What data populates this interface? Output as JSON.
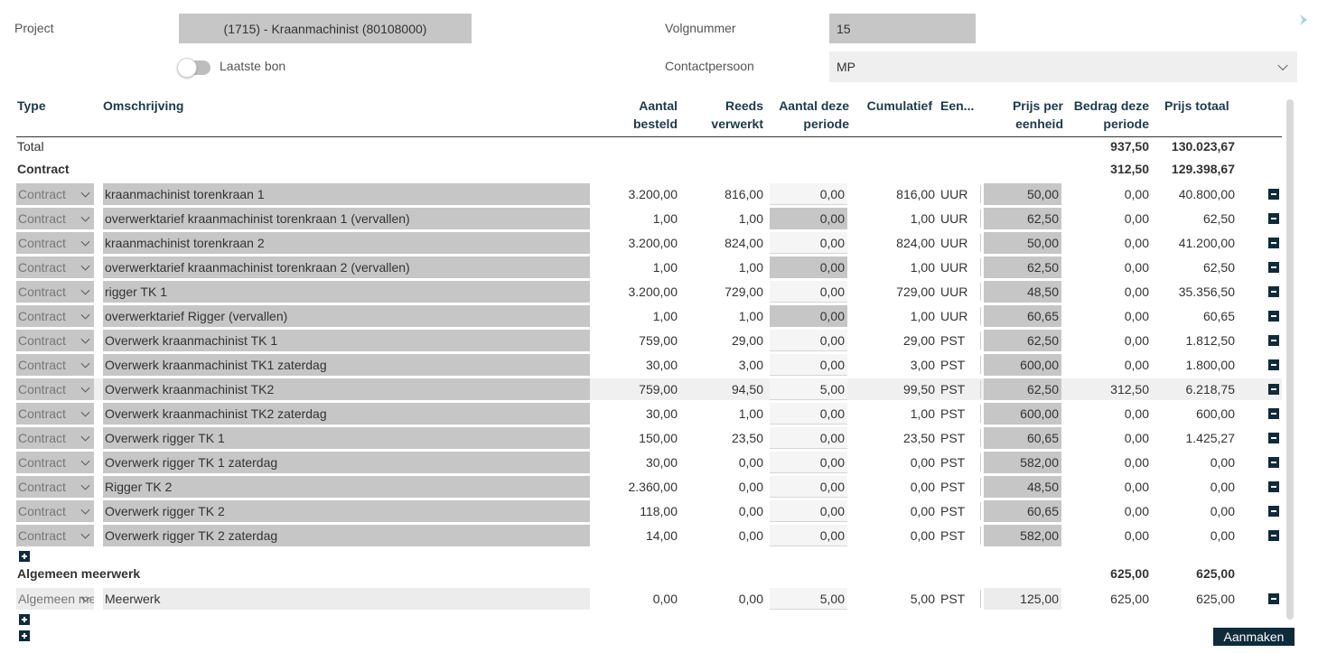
{
  "header": {
    "project_label": "Project",
    "project_value": "(1715) - Kraanmachinist (80108000)",
    "volgnummer_label": "Volgnummer",
    "volgnummer_value": "15",
    "laatste_bon_label": "Laatste bon",
    "laatste_bon_on": false,
    "contactpersoon_label": "Contactpersoon",
    "contactpersoon_value": "MP"
  },
  "columns": {
    "type": "Type",
    "omschrijving": "Omschrijving",
    "aantal_besteld_1": "Aantal",
    "aantal_besteld_2": "besteld",
    "reeds_verwerkt_1": "Reeds",
    "reeds_verwerkt_2": "verwerkt",
    "aantal_deze_periode_1": "Aantal deze",
    "aantal_deze_periode_2": "periode",
    "cumulatief": "Cumulatief",
    "eenheid": "Een...",
    "prijs_per_eenheid_1": "Prijs per",
    "prijs_per_eenheid_2": "eenheid",
    "bedrag_deze_periode_1": "Bedrag deze",
    "bedrag_deze_periode_2": "periode",
    "prijs_totaal": "Prijs totaal"
  },
  "total": {
    "label": "Total",
    "bedrag": "937,50",
    "totaal": "130.023,67"
  },
  "contract": {
    "label": "Contract",
    "bedrag": "312,50",
    "totaal": "129.398,67"
  },
  "contract_rows": [
    {
      "type": "Contract",
      "desc": "kraanmachinist torenkraan 1",
      "besteld": "3.200,00",
      "verwerkt": "816,00",
      "aantal": "0,00",
      "aantal_disabled": false,
      "cum": "816,00",
      "unit": "UUR",
      "prijs": "50,00",
      "bedrag": "0,00",
      "totaal": "40.800,00",
      "highlight": false
    },
    {
      "type": "Contract",
      "desc": "overwerktarief kraanmachinist torenkraan 1 (vervallen)",
      "besteld": "1,00",
      "verwerkt": "1,00",
      "aantal": "0,00",
      "aantal_disabled": true,
      "cum": "1,00",
      "unit": "UUR",
      "prijs": "62,50",
      "bedrag": "0,00",
      "totaal": "62,50",
      "highlight": false
    },
    {
      "type": "Contract",
      "desc": "kraanmachinist torenkraan 2",
      "besteld": "3.200,00",
      "verwerkt": "824,00",
      "aantal": "0,00",
      "aantal_disabled": false,
      "cum": "824,00",
      "unit": "UUR",
      "prijs": "50,00",
      "bedrag": "0,00",
      "totaal": "41.200,00",
      "highlight": false
    },
    {
      "type": "Contract",
      "desc": "overwerktarief kraanmachinist torenkraan 2 (vervallen)",
      "besteld": "1,00",
      "verwerkt": "1,00",
      "aantal": "0,00",
      "aantal_disabled": true,
      "cum": "1,00",
      "unit": "UUR",
      "prijs": "62,50",
      "bedrag": "0,00",
      "totaal": "62,50",
      "highlight": false
    },
    {
      "type": "Contract",
      "desc": "rigger TK 1",
      "besteld": "3.200,00",
      "verwerkt": "729,00",
      "aantal": "0,00",
      "aantal_disabled": false,
      "cum": "729,00",
      "unit": "UUR",
      "prijs": "48,50",
      "bedrag": "0,00",
      "totaal": "35.356,50",
      "highlight": false
    },
    {
      "type": "Contract",
      "desc": "overwerktarief Rigger (vervallen)",
      "besteld": "1,00",
      "verwerkt": "1,00",
      "aantal": "0,00",
      "aantal_disabled": true,
      "cum": "1,00",
      "unit": "UUR",
      "prijs": "60,65",
      "bedrag": "0,00",
      "totaal": "60,65",
      "highlight": false
    },
    {
      "type": "Contract",
      "desc": "Overwerk kraanmachinist TK 1",
      "besteld": "759,00",
      "verwerkt": "29,00",
      "aantal": "0,00",
      "aantal_disabled": false,
      "cum": "29,00",
      "unit": "PST",
      "prijs": "62,50",
      "bedrag": "0,00",
      "totaal": "1.812,50",
      "highlight": false
    },
    {
      "type": "Contract",
      "desc": "Overwerk kraanmachinist TK1 zaterdag",
      "besteld": "30,00",
      "verwerkt": "3,00",
      "aantal": "0,00",
      "aantal_disabled": false,
      "cum": "3,00",
      "unit": "PST",
      "prijs": "600,00",
      "bedrag": "0,00",
      "totaal": "1.800,00",
      "highlight": false
    },
    {
      "type": "Contract",
      "desc": "Overwerk kraanmachinist TK2",
      "besteld": "759,00",
      "verwerkt": "94,50",
      "aantal": "5,00",
      "aantal_disabled": false,
      "cum": "99,50",
      "unit": "PST",
      "prijs": "62,50",
      "bedrag": "312,50",
      "totaal": "6.218,75",
      "highlight": true
    },
    {
      "type": "Contract",
      "desc": "Overwerk kraanmachinist TK2 zaterdag",
      "besteld": "30,00",
      "verwerkt": "1,00",
      "aantal": "0,00",
      "aantal_disabled": false,
      "cum": "1,00",
      "unit": "PST",
      "prijs": "600,00",
      "bedrag": "0,00",
      "totaal": "600,00",
      "highlight": false
    },
    {
      "type": "Contract",
      "desc": "Overwerk rigger TK 1",
      "besteld": "150,00",
      "verwerkt": "23,50",
      "aantal": "0,00",
      "aantal_disabled": false,
      "cum": "23,50",
      "unit": "PST",
      "prijs": "60,65",
      "bedrag": "0,00",
      "totaal": "1.425,27",
      "highlight": false
    },
    {
      "type": "Contract",
      "desc": "Overwerk rigger TK 1 zaterdag",
      "besteld": "30,00",
      "verwerkt": "0,00",
      "aantal": "0,00",
      "aantal_disabled": false,
      "cum": "0,00",
      "unit": "PST",
      "prijs": "582,00",
      "bedrag": "0,00",
      "totaal": "0,00",
      "highlight": false
    },
    {
      "type": "Contract",
      "desc": "Rigger TK 2",
      "besteld": "2.360,00",
      "verwerkt": "0,00",
      "aantal": "0,00",
      "aantal_disabled": false,
      "cum": "0,00",
      "unit": "PST",
      "prijs": "48,50",
      "bedrag": "0,00",
      "totaal": "0,00",
      "highlight": false
    },
    {
      "type": "Contract",
      "desc": "Overwerk rigger TK 2",
      "besteld": "118,00",
      "verwerkt": "0,00",
      "aantal": "0,00",
      "aantal_disabled": false,
      "cum": "0,00",
      "unit": "PST",
      "prijs": "60,65",
      "bedrag": "0,00",
      "totaal": "0,00",
      "highlight": false
    },
    {
      "type": "Contract",
      "desc": "Overwerk rigger TK 2 zaterdag",
      "besteld": "14,00",
      "verwerkt": "0,00",
      "aantal": "0,00",
      "aantal_disabled": false,
      "cum": "0,00",
      "unit": "PST",
      "prijs": "582,00",
      "bedrag": "0,00",
      "totaal": "0,00",
      "highlight": false
    }
  ],
  "meerwerk": {
    "label": "Algemeen meerwerk",
    "bedrag": "625,00",
    "totaal": "625,00"
  },
  "meerwerk_rows": [
    {
      "type": "Algemeen meerwerk",
      "desc": "Meerwerk",
      "besteld": "0,00",
      "verwerkt": "0,00",
      "aantal": "5,00",
      "aantal_disabled": false,
      "cum": "5,00",
      "unit": "PST",
      "prijs": "125,00",
      "bedrag": "625,00",
      "totaal": "625,00",
      "highlight": false
    }
  ],
  "footer": {
    "aanmaken_label": "Aanmaken"
  },
  "colors": {
    "accent": "#0e2b3a",
    "field_grey": "#c6c6c6",
    "header_text": "#1d3a4a"
  }
}
